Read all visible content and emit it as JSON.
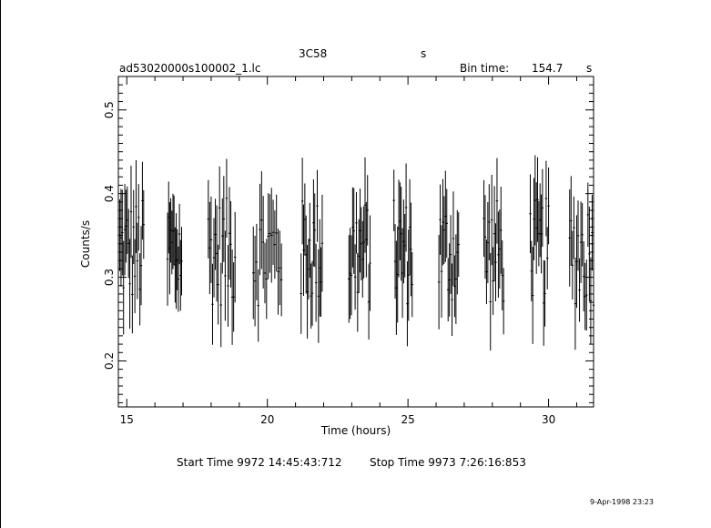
{
  "header": {
    "object": "3C58",
    "unit": "s",
    "file": "ad53020000s100002_1.lc",
    "bin_label": "Bin time:",
    "bin_value": "154.7",
    "bin_unit": "s"
  },
  "footer": {
    "start": "Start Time  9972 14:45:43:712",
    "stop": "Stop Time  9973  7:26:16:853",
    "stamp": "9-Apr-1998 23:23"
  },
  "chart_data": {
    "type": "scatter",
    "xlabel": "Time (hours)",
    "ylabel": "Counts/s",
    "xlim": [
      14.7,
      31.6
    ],
    "ylim": [
      0.145,
      0.54
    ],
    "xticks": [
      15,
      20,
      25,
      30
    ],
    "xtick_labels": [
      "15",
      "20",
      "25",
      "30"
    ],
    "yticks": [
      0.2,
      0.3,
      0.4,
      0.5
    ],
    "ytick_labels": [
      "0.2",
      "0.3",
      "0.4",
      "0.5"
    ],
    "error_bars": true,
    "segments": [
      {
        "x_start": 14.75,
        "x_end": 15.6,
        "n": 20
      },
      {
        "x_start": 16.45,
        "x_end": 16.95,
        "n": 14
      },
      {
        "x_start": 17.9,
        "x_end": 18.85,
        "n": 20
      },
      {
        "x_start": 19.5,
        "x_end": 20.5,
        "n": 18
      },
      {
        "x_start": 21.2,
        "x_end": 21.95,
        "n": 18
      },
      {
        "x_start": 22.9,
        "x_end": 23.65,
        "n": 18
      },
      {
        "x_start": 24.5,
        "x_end": 25.15,
        "n": 16
      },
      {
        "x_start": 26.1,
        "x_end": 26.8,
        "n": 16
      },
      {
        "x_start": 27.7,
        "x_end": 28.4,
        "n": 16
      },
      {
        "x_start": 29.35,
        "x_end": 30.0,
        "n": 16
      },
      {
        "x_start": 30.75,
        "x_end": 31.6,
        "n": 18
      }
    ],
    "typical_error": 0.045,
    "typical_rate": 0.33
  }
}
